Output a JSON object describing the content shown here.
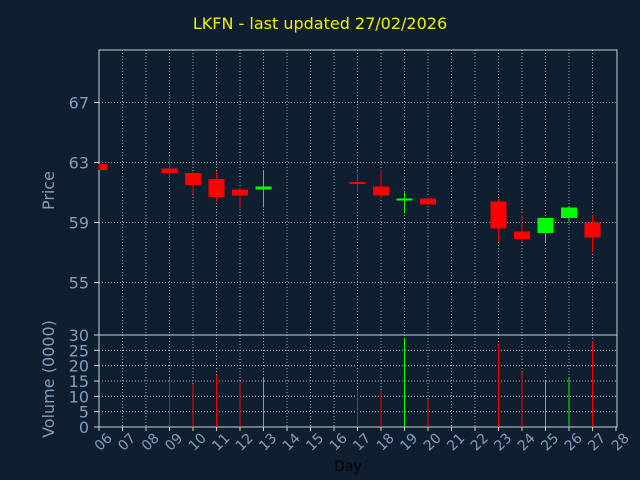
{
  "chart_data": {
    "title": "LKFN - last updated 27/02/2026",
    "colors": {
      "background": "#0f1f30",
      "axis": "#c8d0d8",
      "grid": "#c8d0d8",
      "label": "#7f9fbf",
      "title": "#f2f200",
      "up": "#00ff00",
      "down": "#ff0000"
    },
    "price_panel": {
      "type": "candlestick",
      "ylabel": "Price",
      "ylim": [
        51.5,
        70.5
      ],
      "yticks": [
        55,
        59,
        63,
        67
      ],
      "grid": true
    },
    "volume_panel": {
      "type": "bar",
      "ylabel": "Volume (0000)",
      "ylim": [
        0,
        30
      ],
      "yticks": [
        0,
        5,
        10,
        15,
        20,
        25,
        30
      ],
      "grid": true
    },
    "xaxis": {
      "xlabel": "Day",
      "ticks": [
        "06",
        "07",
        "08",
        "09",
        "10",
        "11",
        "12",
        "13",
        "14",
        "15",
        "16",
        "17",
        "18",
        "19",
        "20",
        "21",
        "22",
        "23",
        "24",
        "25",
        "26",
        "27",
        "28"
      ]
    },
    "candles": [
      {
        "day": "06",
        "open": 62.9,
        "high": 62.9,
        "low": 62.5,
        "close": 62.5,
        "volume": 0
      },
      {
        "day": "09",
        "open": 62.6,
        "high": 63.3,
        "low": 61.8,
        "close": 62.3,
        "volume": 16
      },
      {
        "day": "10",
        "open": 62.3,
        "high": 62.4,
        "low": 60.9,
        "close": 61.5,
        "volume": 14
      },
      {
        "day": "11",
        "open": 61.9,
        "high": 62.4,
        "low": 60.4,
        "close": 60.7,
        "volume": 17
      },
      {
        "day": "12",
        "open": 61.2,
        "high": 61.3,
        "low": 60.0,
        "close": 60.8,
        "volume": 15
      },
      {
        "day": "13",
        "open": 61.2,
        "high": 62.5,
        "low": 60.0,
        "close": 61.4,
        "volume": 16
      },
      {
        "day": "17",
        "open": 61.7,
        "high": 62.4,
        "low": 61.0,
        "close": 61.6,
        "volume": 12
      },
      {
        "day": "18",
        "open": 61.4,
        "high": 62.5,
        "low": 60.6,
        "close": 60.8,
        "volume": 12
      },
      {
        "day": "19",
        "open": 60.5,
        "high": 61.0,
        "low": 59.6,
        "close": 60.6,
        "volume": 29
      },
      {
        "day": "20",
        "open": 60.6,
        "high": 60.7,
        "low": 60.2,
        "close": 60.2,
        "volume": 9
      },
      {
        "day": "23",
        "open": 60.4,
        "high": 60.6,
        "low": 57.7,
        "close": 58.6,
        "volume": 27
      },
      {
        "day": "24",
        "open": 58.4,
        "high": 59.5,
        "low": 57.7,
        "close": 57.9,
        "volume": 18
      },
      {
        "day": "25",
        "open": 58.3,
        "high": 59.3,
        "low": 57.7,
        "close": 59.3,
        "volume": 15
      },
      {
        "day": "26",
        "open": 59.3,
        "high": 60.1,
        "low": 59.0,
        "close": 60.0,
        "volume": 16
      },
      {
        "day": "27",
        "open": 59.0,
        "high": 59.5,
        "low": 57.0,
        "close": 58.0,
        "volume": 28
      }
    ]
  }
}
